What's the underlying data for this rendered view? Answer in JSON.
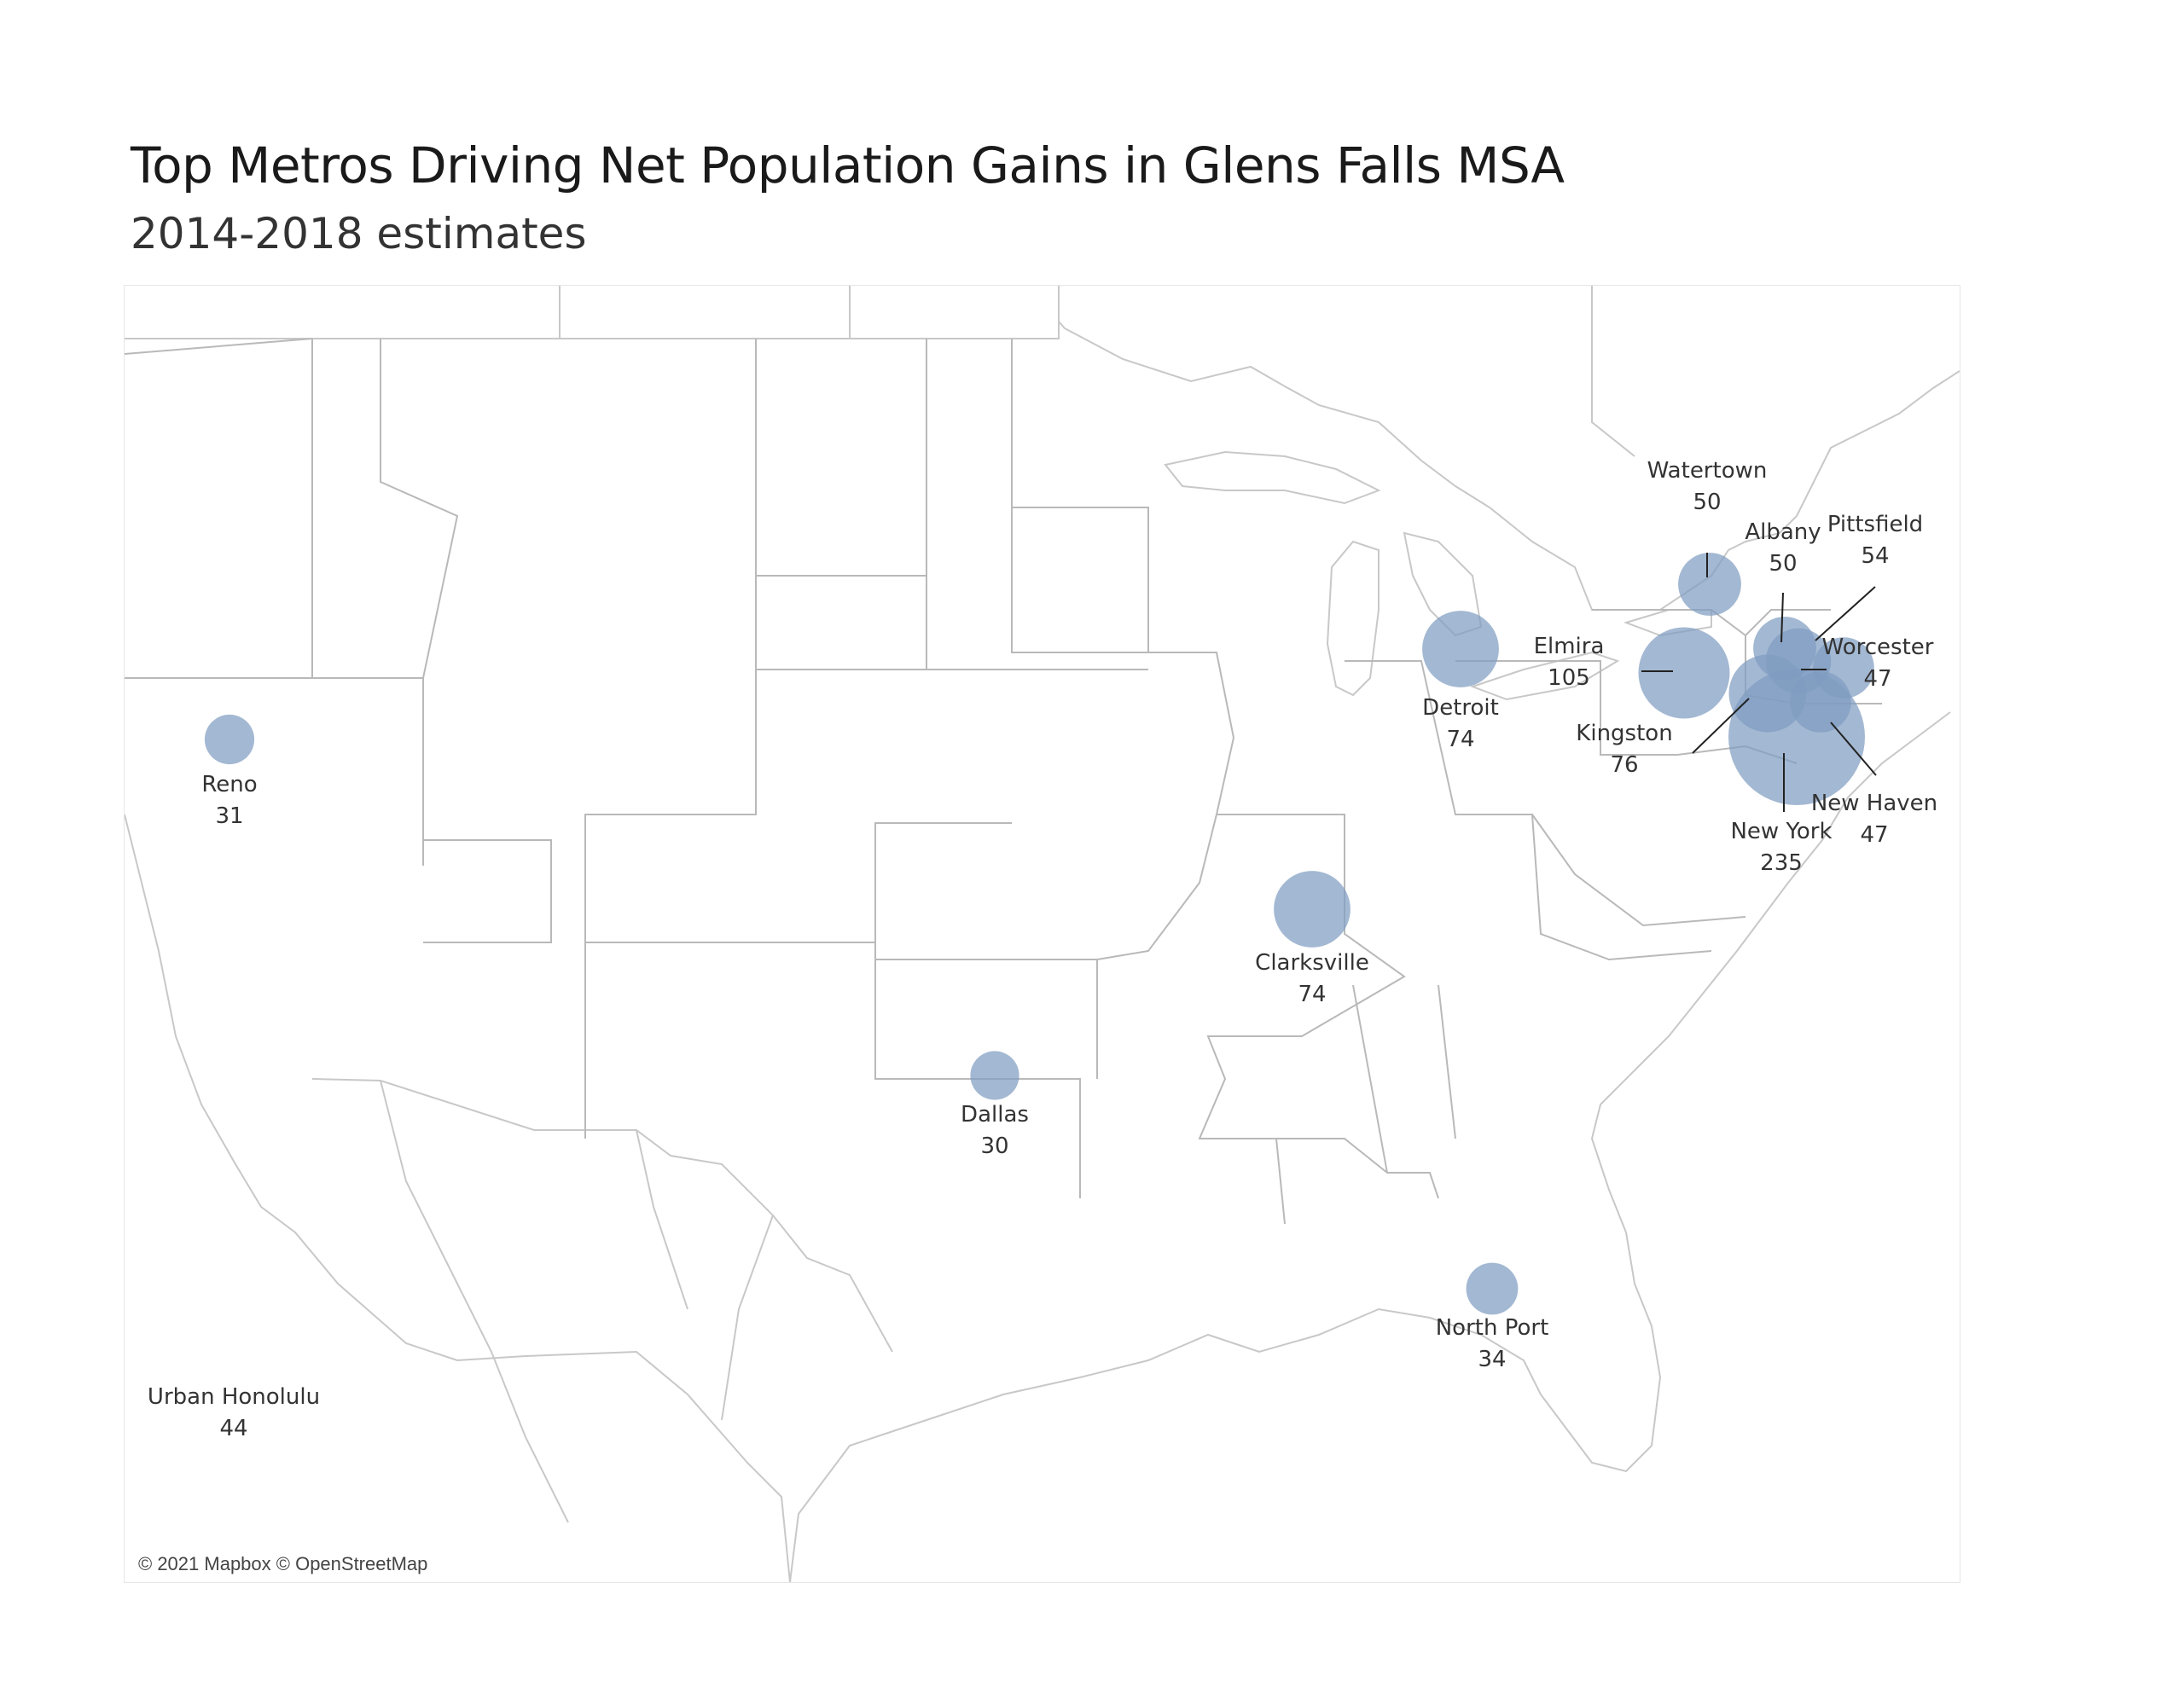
{
  "header": {
    "title": "Top Metros Driving Net Population Gains in Glens Falls MSA",
    "subtitle": "2014-2018 estimates"
  },
  "map": {
    "attribution": "© 2021 Mapbox © OpenStreetMap",
    "bubble_color": "#7f9cc0",
    "bubble_opacity": 0.72,
    "basemap_style": "light gray",
    "metros": [
      {
        "name": "Watertown",
        "value": "50"
      },
      {
        "name": "Albany",
        "value": "50"
      },
      {
        "name": "Pittsfield",
        "value": "54"
      },
      {
        "name": "Worcester",
        "value": "47"
      },
      {
        "name": "Elmira",
        "value": "105"
      },
      {
        "name": "Detroit",
        "value": "74"
      },
      {
        "name": "Kingston",
        "value": "76"
      },
      {
        "name": "New Haven",
        "value": "47"
      },
      {
        "name": "New York",
        "value": "235"
      },
      {
        "name": "Reno",
        "value": "31"
      },
      {
        "name": "Clarksville",
        "value": "74"
      },
      {
        "name": "Dallas",
        "value": "30"
      },
      {
        "name": "North Port",
        "value": "34"
      },
      {
        "name": "Urban Honolulu",
        "value": "44"
      }
    ]
  }
}
